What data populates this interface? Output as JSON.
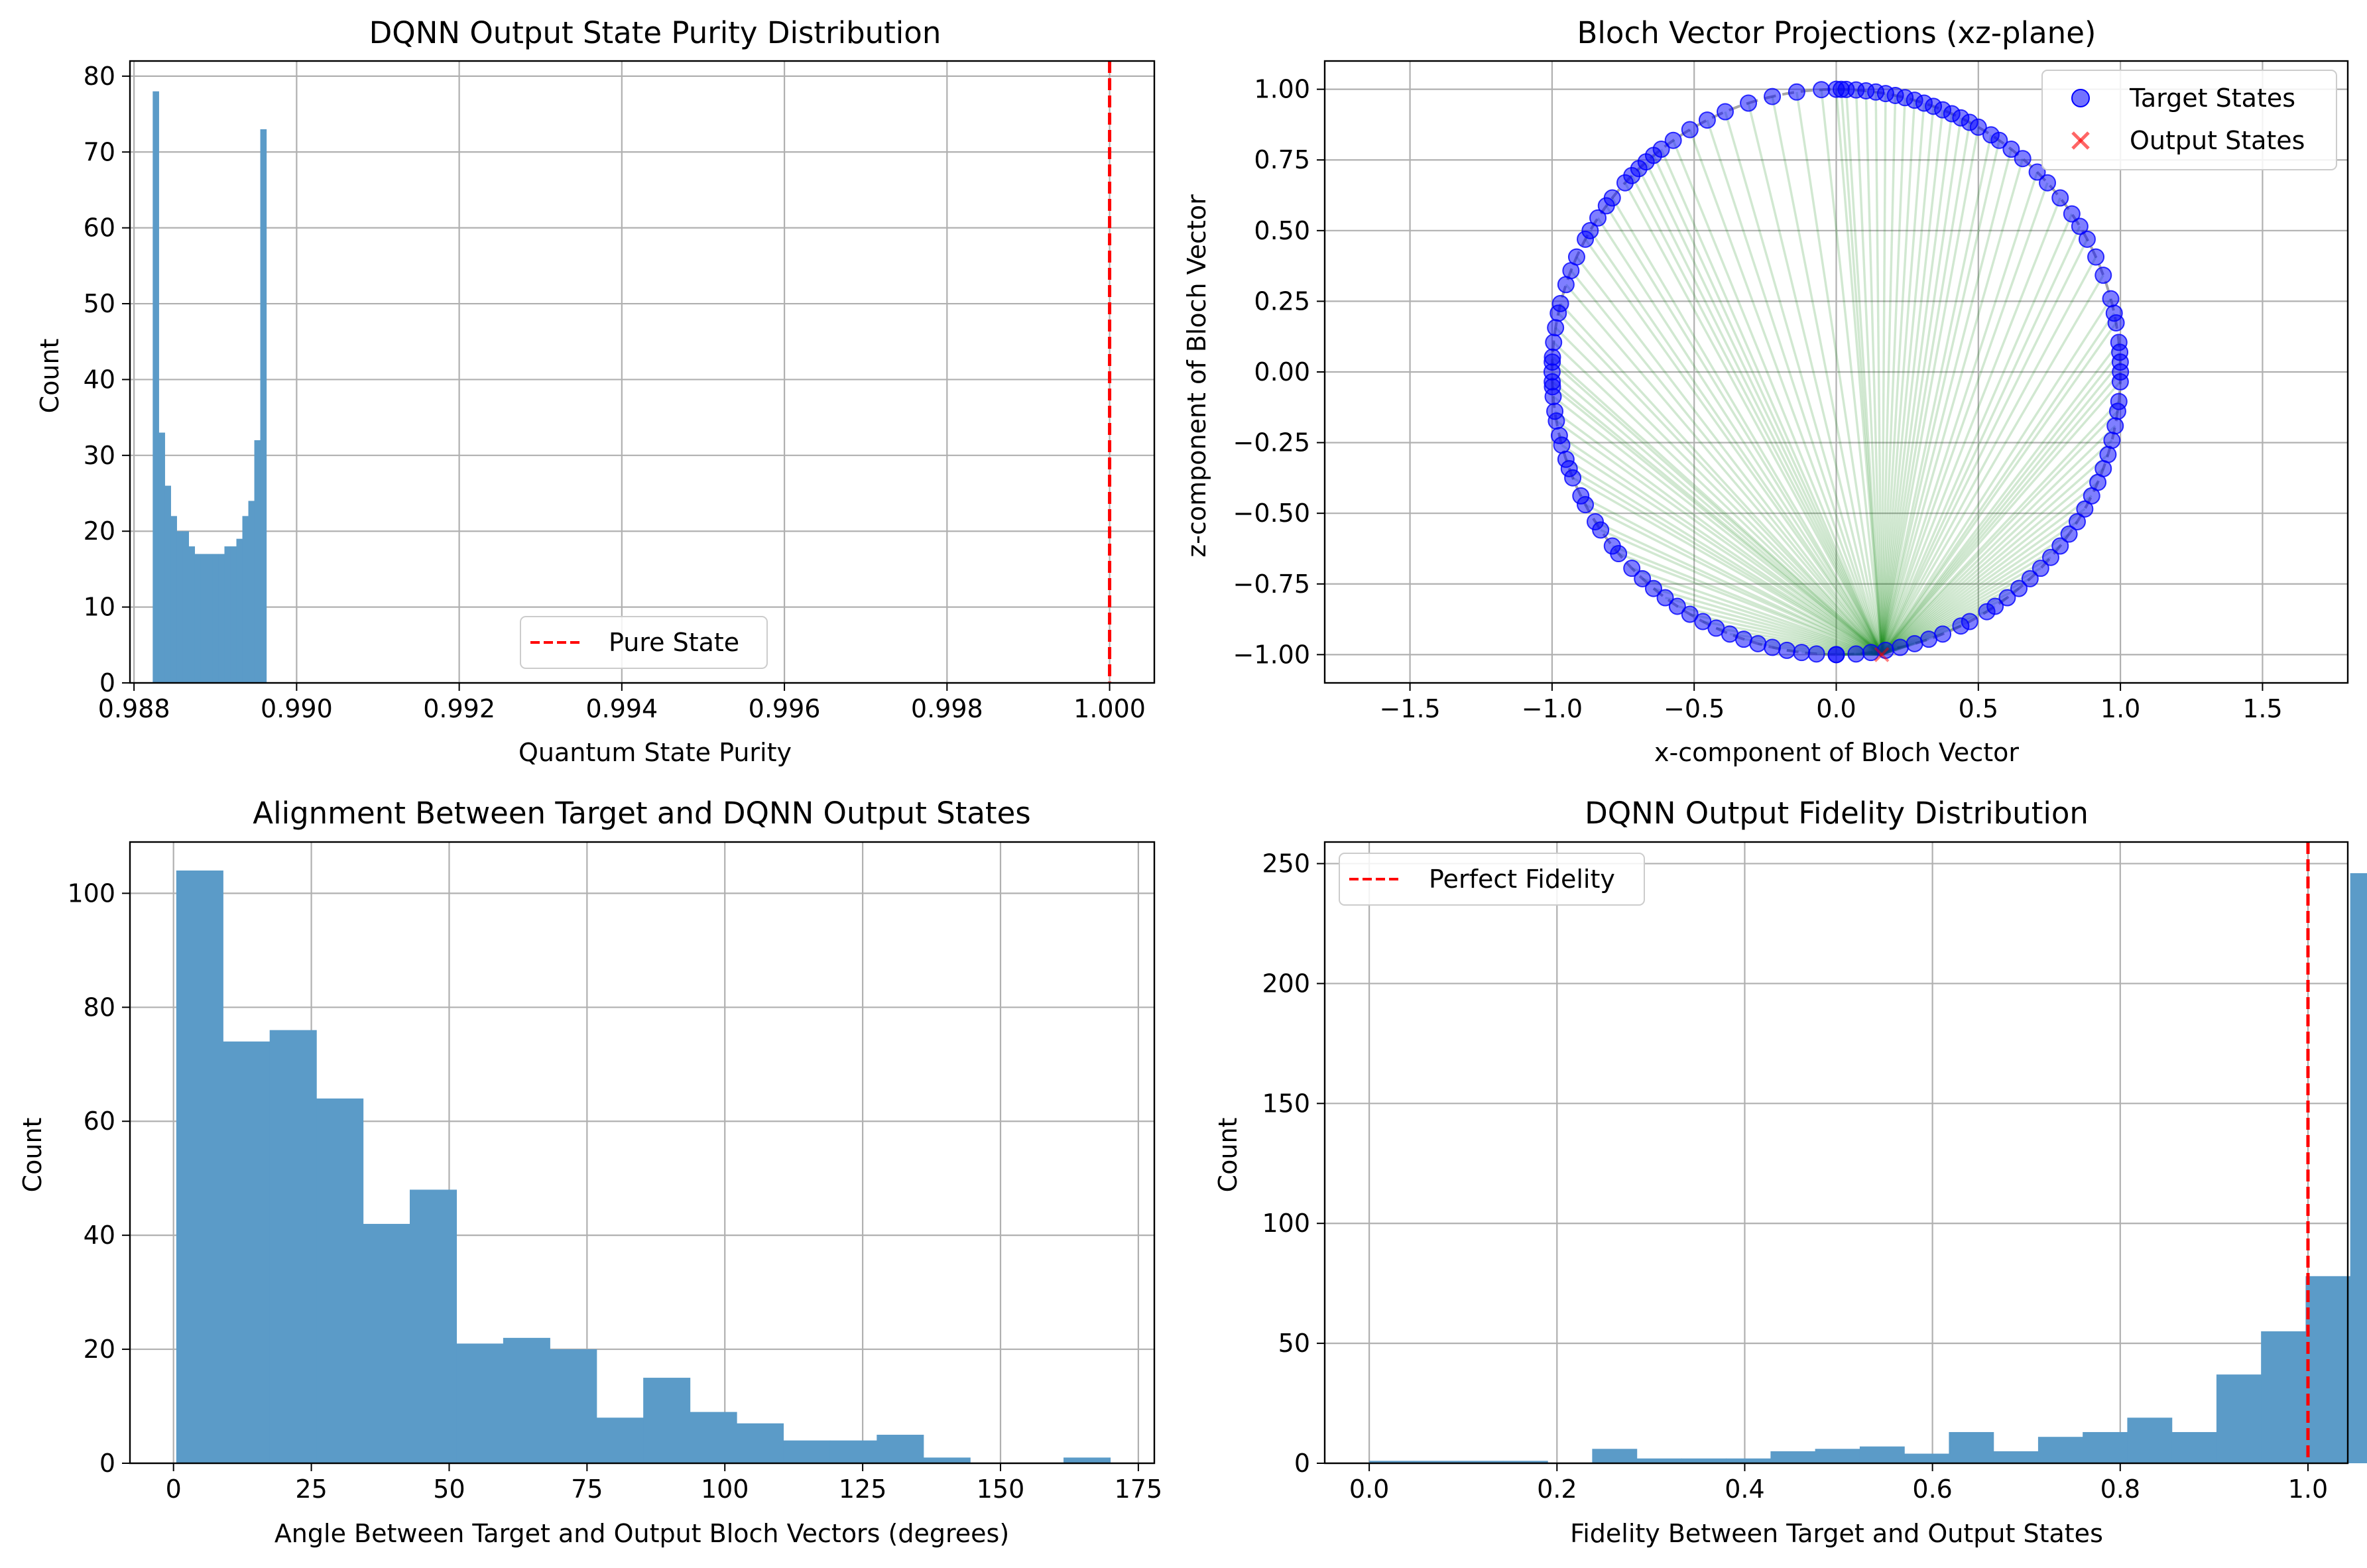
{
  "charts": [
    {
      "type": "bar",
      "title": "DQNN Output State Purity Distribution",
      "xlabel": "Quantum State Purity",
      "ylabel": "Count",
      "xlim": [
        0.98795,
        1.00055
      ],
      "ylim": [
        0,
        82
      ],
      "xticks": [
        0.988,
        0.99,
        0.992,
        0.994,
        0.996,
        0.998,
        1.0
      ],
      "xtick_labels": [
        "0.988",
        "0.990",
        "0.992",
        "0.994",
        "0.996",
        "0.998",
        "1.000"
      ],
      "yticks": [
        0,
        10,
        20,
        30,
        40,
        50,
        60,
        70,
        80
      ],
      "ytick_labels": [
        "0",
        "10",
        "20",
        "30",
        "40",
        "50",
        "60",
        "70",
        "80"
      ],
      "grid": true,
      "bin_start": 0.98823,
      "bin_width": 7.35e-05,
      "values": [
        78,
        33,
        26,
        22,
        20,
        20,
        18,
        17,
        17,
        17,
        17,
        17,
        18,
        18,
        19,
        22,
        24,
        32,
        73
      ],
      "bar_color": "#5b9bc8",
      "vline": {
        "x": 1.0,
        "color": "#ff0000",
        "label": "Pure State"
      },
      "legend_position": "lower center"
    },
    {
      "type": "scatter",
      "title": "Bloch Vector Projections (xz-plane)",
      "xlabel": "x-component of Bloch Vector",
      "ylabel": "z-component of Bloch Vector",
      "xlim": [
        -1.8,
        1.8
      ],
      "ylim": [
        -1.1,
        1.1
      ],
      "xticks": [
        -1.5,
        -1.0,
        -0.5,
        0.0,
        0.5,
        1.0,
        1.5
      ],
      "xtick_labels": [
        "−1.5",
        "−1.0",
        "−0.5",
        "0.0",
        "0.5",
        "1.0",
        "1.5"
      ],
      "yticks": [
        -1.0,
        -0.75,
        -0.5,
        -0.25,
        0.0,
        0.25,
        0.5,
        0.75,
        1.0
      ],
      "ytick_labels": [
        "−1.00",
        "−0.75",
        "−0.50",
        "−0.25",
        "0.00",
        "0.25",
        "0.50",
        "0.75",
        "1.00"
      ],
      "grid": true,
      "unit_circle": true,
      "output_point": [
        0.16,
        -1.0
      ],
      "target_color": "#0000ff",
      "output_color": "#ff0000",
      "line_color": "#008000",
      "legend": [
        "Target States",
        "Output States"
      ],
      "legend_position": "upper right",
      "target_angles_deg": [
        0,
        -38,
        -42,
        -46,
        -52,
        -54,
        -57,
        -62,
        -69,
        -76,
        -84,
        -88,
        -90,
        -92,
        -95,
        -100,
        -105,
        -110,
        -116,
        -122,
        -128,
        -134,
        -140,
        -146,
        -152,
        -158,
        -164,
        -170,
        -176,
        176,
        170,
        164,
        158,
        152,
        146,
        140,
        134,
        128,
        122,
        116,
        110,
        104,
        98,
        92,
        90,
        88,
        84,
        80,
        75,
        70,
        62,
        56,
        48,
        38,
        35,
        33,
        30,
        26,
        22,
        18,
        14,
        10,
        6,
        4,
        2,
        180,
        -180,
        -3,
        -8,
        -13,
        -18,
        -23,
        -27,
        -31,
        -35,
        -40,
        -44,
        -48,
        -60,
        -66,
        -72,
        -78,
        -81,
        -87,
        -93,
        -98,
        -103,
        -108,
        -112,
        -118,
        -124,
        -130,
        -137,
        -143,
        -149,
        -155,
        -161,
        -167,
        -173,
        173,
        167,
        161,
        154,
        148,
        143,
        137,
        131,
        125,
        119,
        113,
        107,
        101,
        96,
        86,
        78,
        66,
        59,
        52,
        45,
        41,
        28,
        24,
        20,
        16,
        12,
        8,
        1
      ]
    },
    {
      "type": "bar",
      "title": "Alignment Between Target and DQNN Output States",
      "xlabel": "Angle Between Target and Output Bloch Vectors (degrees)",
      "ylabel": "Count",
      "xlim": [
        -7.9,
        177.9
      ],
      "ylim": [
        0,
        109
      ],
      "xticks": [
        0,
        25,
        50,
        75,
        100,
        125,
        150,
        175
      ],
      "xtick_labels": [
        "0",
        "25",
        "50",
        "75",
        "100",
        "125",
        "150",
        "175"
      ],
      "yticks": [
        0,
        20,
        40,
        60,
        80,
        100
      ],
      "ytick_labels": [
        "0",
        "20",
        "40",
        "60",
        "80",
        "100"
      ],
      "grid": true,
      "bin_start": 0.5,
      "bin_width": 8.47,
      "values": [
        104,
        74,
        76,
        64,
        42,
        48,
        21,
        22,
        20,
        8,
        15,
        9,
        7,
        4,
        4,
        5,
        1,
        0,
        0,
        1
      ],
      "bar_color": "#5b9bc8"
    },
    {
      "type": "bar",
      "title": "DQNN Output Fidelity Distribution",
      "xlabel": "Fidelity Between Target and Output States",
      "ylabel": "Count",
      "xlim": [
        -0.0474,
        1.0424
      ],
      "ylim": [
        0,
        259
      ],
      "xticks": [
        0.0,
        0.2,
        0.4,
        0.6,
        0.8,
        1.0
      ],
      "xtick_labels": [
        "0.0",
        "0.2",
        "0.4",
        "0.6",
        "0.8",
        "1.0"
      ],
      "yticks": [
        0,
        50,
        100,
        150,
        200,
        250
      ],
      "ytick_labels": [
        "0",
        "50",
        "100",
        "150",
        "200",
        "250"
      ],
      "grid": true,
      "bin_start": 0.0,
      "bin_width": 0.0475,
      "values": [
        1,
        1,
        1,
        1,
        0,
        6,
        2,
        2,
        2,
        5,
        6,
        7,
        4,
        13,
        5,
        11,
        13,
        19,
        13,
        37,
        55,
        78,
        246
      ],
      "bar_color": "#5b9bc8",
      "vline": {
        "x": 1.0,
        "color": "#ff0000",
        "label": "Perfect Fidelity"
      },
      "legend_position": "upper left"
    }
  ]
}
